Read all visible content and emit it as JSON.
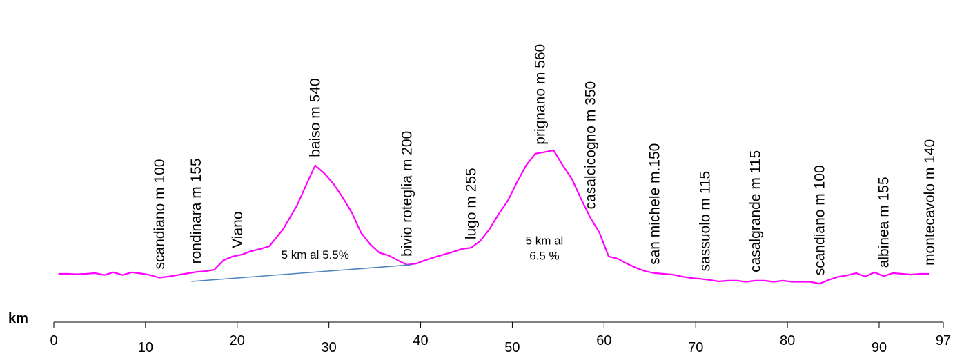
{
  "chart_data": {
    "type": "line",
    "title": "",
    "xlabel": "km",
    "ylabel": "",
    "xlim": [
      0,
      97
    ],
    "x_ticks": [
      "0",
      "10",
      "20",
      "30",
      "40",
      "50",
      "60",
      "70",
      "80",
      "90",
      "97"
    ],
    "grid": false,
    "legend": "none",
    "colors": {
      "profile": "#ff00ff",
      "gradient_line": "#4f81bd",
      "axis": "#000000"
    },
    "series": [
      {
        "points": [
          [
            0.5,
            20
          ],
          [
            1.5,
            20
          ],
          [
            2.5,
            19
          ],
          [
            3.5,
            20
          ],
          [
            4.5,
            22
          ],
          [
            5.5,
            17
          ],
          [
            6.5,
            24
          ],
          [
            7.5,
            17
          ],
          [
            8.5,
            24
          ],
          [
            9.5,
            21
          ],
          [
            10.5,
            17
          ],
          [
            11.5,
            10
          ],
          [
            12.5,
            13
          ],
          [
            13.5,
            17
          ],
          [
            14.5,
            21
          ],
          [
            15.5,
            25
          ],
          [
            16.5,
            27
          ],
          [
            17.5,
            31
          ],
          [
            18.5,
            56
          ],
          [
            19.5,
            66
          ],
          [
            20.5,
            71
          ],
          [
            21.5,
            80
          ],
          [
            22.5,
            86
          ],
          [
            23.5,
            93
          ],
          [
            25,
            138
          ],
          [
            26.5,
            200
          ],
          [
            27.5,
            254
          ],
          [
            28.5,
            307
          ],
          [
            29.5,
            286
          ],
          [
            30.5,
            258
          ],
          [
            31.5,
            222
          ],
          [
            32.5,
            182
          ],
          [
            33.5,
            129
          ],
          [
            34.5,
            98
          ],
          [
            35.5,
            76
          ],
          [
            36.5,
            69
          ],
          [
            37.5,
            56
          ],
          [
            38.5,
            44
          ],
          [
            39.5,
            47
          ],
          [
            40.5,
            56
          ],
          [
            41.5,
            64
          ],
          [
            42.5,
            71
          ],
          [
            43.5,
            78
          ],
          [
            44.5,
            86
          ],
          [
            45.5,
            89
          ],
          [
            46.5,
            107
          ],
          [
            47.5,
            138
          ],
          [
            48.5,
            178
          ],
          [
            49.5,
            213
          ],
          [
            50.5,
            262
          ],
          [
            51.5,
            307
          ],
          [
            52.5,
            338
          ],
          [
            53.5,
            342
          ],
          [
            54.5,
            347
          ],
          [
            55.5,
            307
          ],
          [
            56.5,
            271
          ],
          [
            57.5,
            218
          ],
          [
            58.5,
            169
          ],
          [
            59.5,
            129
          ],
          [
            60.5,
            66
          ],
          [
            61.5,
            60
          ],
          [
            62.5,
            47
          ],
          [
            63.5,
            36
          ],
          [
            64.5,
            27
          ],
          [
            65.5,
            22
          ],
          [
            66.5,
            20
          ],
          [
            67.5,
            18
          ],
          [
            68.5,
            13
          ],
          [
            69.5,
            9
          ],
          [
            70.5,
            7
          ],
          [
            71.5,
            4
          ],
          [
            72.5,
            0
          ],
          [
            73.5,
            2
          ],
          [
            74.5,
            2
          ],
          [
            75.5,
            -1
          ],
          [
            76.5,
            2
          ],
          [
            77.5,
            2
          ],
          [
            78.5,
            -1
          ],
          [
            79.5,
            2
          ],
          [
            80.5,
            -1
          ],
          [
            81.5,
            -1
          ],
          [
            82.5,
            -1
          ],
          [
            83.5,
            -6
          ],
          [
            84.5,
            4
          ],
          [
            85.5,
            12
          ],
          [
            86.5,
            16
          ],
          [
            87.5,
            22
          ],
          [
            88.5,
            13
          ],
          [
            89.5,
            24
          ],
          [
            90.5,
            14
          ],
          [
            91.5,
            22
          ],
          [
            92.5,
            20
          ],
          [
            93.5,
            18
          ],
          [
            94.5,
            20
          ],
          [
            95.5,
            20
          ]
        ]
      }
    ],
    "waypoints": [
      {
        "x": 11.5,
        "y": 10,
        "label": "scandiano m 100"
      },
      {
        "x": 15.5,
        "y": 25,
        "label": "rondinara m 155"
      },
      {
        "x": 20.0,
        "y": 66,
        "label": "Viano"
      },
      {
        "x": 28.5,
        "y": 307,
        "label": "baiso m 540"
      },
      {
        "x": 38.5,
        "y": 44,
        "label": "bivio roteglia m 200"
      },
      {
        "x": 45.5,
        "y": 89,
        "label": "lugo m 255"
      },
      {
        "x": 53.0,
        "y": 340,
        "label": "prignano m 560"
      },
      {
        "x": 58.5,
        "y": 169,
        "label": "casalcicogno m 350"
      },
      {
        "x": 65.5,
        "y": 22,
        "label": "san michele m.150"
      },
      {
        "x": 71.0,
        "y": 5,
        "label": "sassuolo m 115"
      },
      {
        "x": 76.5,
        "y": 2,
        "label": "casalgrande m 115"
      },
      {
        "x": 83.5,
        "y": -6,
        "label": "scandiano m 100"
      },
      {
        "x": 90.5,
        "y": 14,
        "label": "albinea m 155"
      },
      {
        "x": 95.5,
        "y": 20,
        "label": "montecavolo m 140"
      }
    ],
    "gradient_line": {
      "x1": 15.0,
      "x2": 39.0,
      "y1": 0,
      "y2": 44
    },
    "annotations": [
      {
        "lines": [
          "5 km al 5.5%"
        ],
        "x": 28.5,
        "y": 60
      },
      {
        "lines": [
          "5 km al",
          "6.5 %"
        ],
        "x": 53.5,
        "y": 98
      }
    ]
  }
}
